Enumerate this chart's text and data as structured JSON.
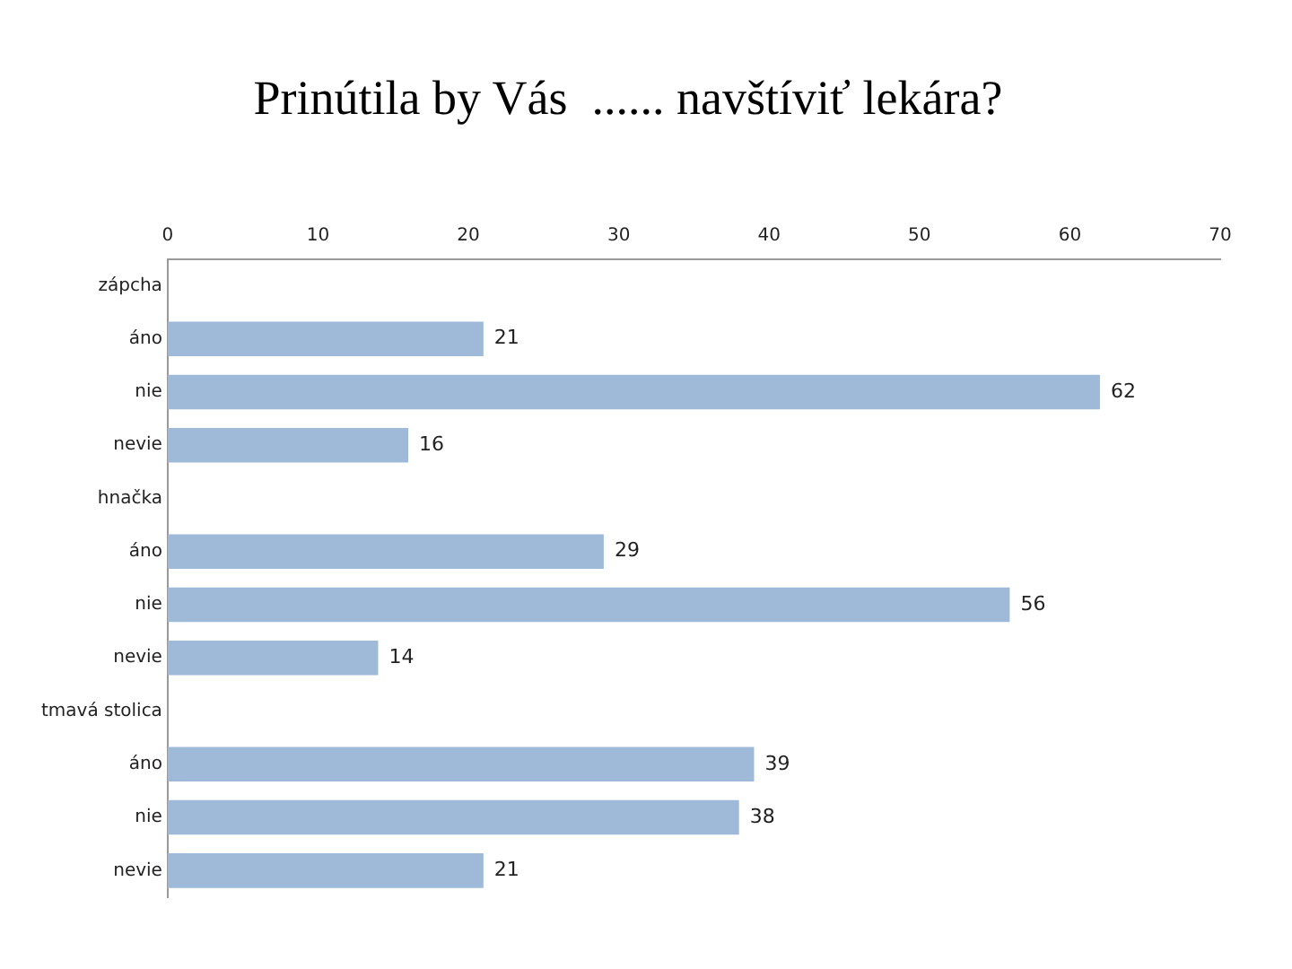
{
  "chart_data": {
    "type": "bar",
    "orientation": "horizontal",
    "title": "Prinútila by Vás  ...... navštíviť lekára?",
    "categories": [
      "zápcha",
      "áno",
      "nie",
      "nevie",
      "hnačka",
      "áno",
      "nie",
      "nevie",
      "tmavá stolica",
      "áno",
      "nie",
      "nevie"
    ],
    "values": [
      null,
      21,
      62,
      16,
      null,
      29,
      56,
      14,
      null,
      39,
      38,
      21
    ],
    "color": "#9fbad9",
    "xlim": [
      0,
      70
    ],
    "xticks": [
      0,
      10,
      20,
      30,
      40,
      50,
      60,
      70
    ],
    "grid": false,
    "legend": false,
    "data_labels": true
  }
}
